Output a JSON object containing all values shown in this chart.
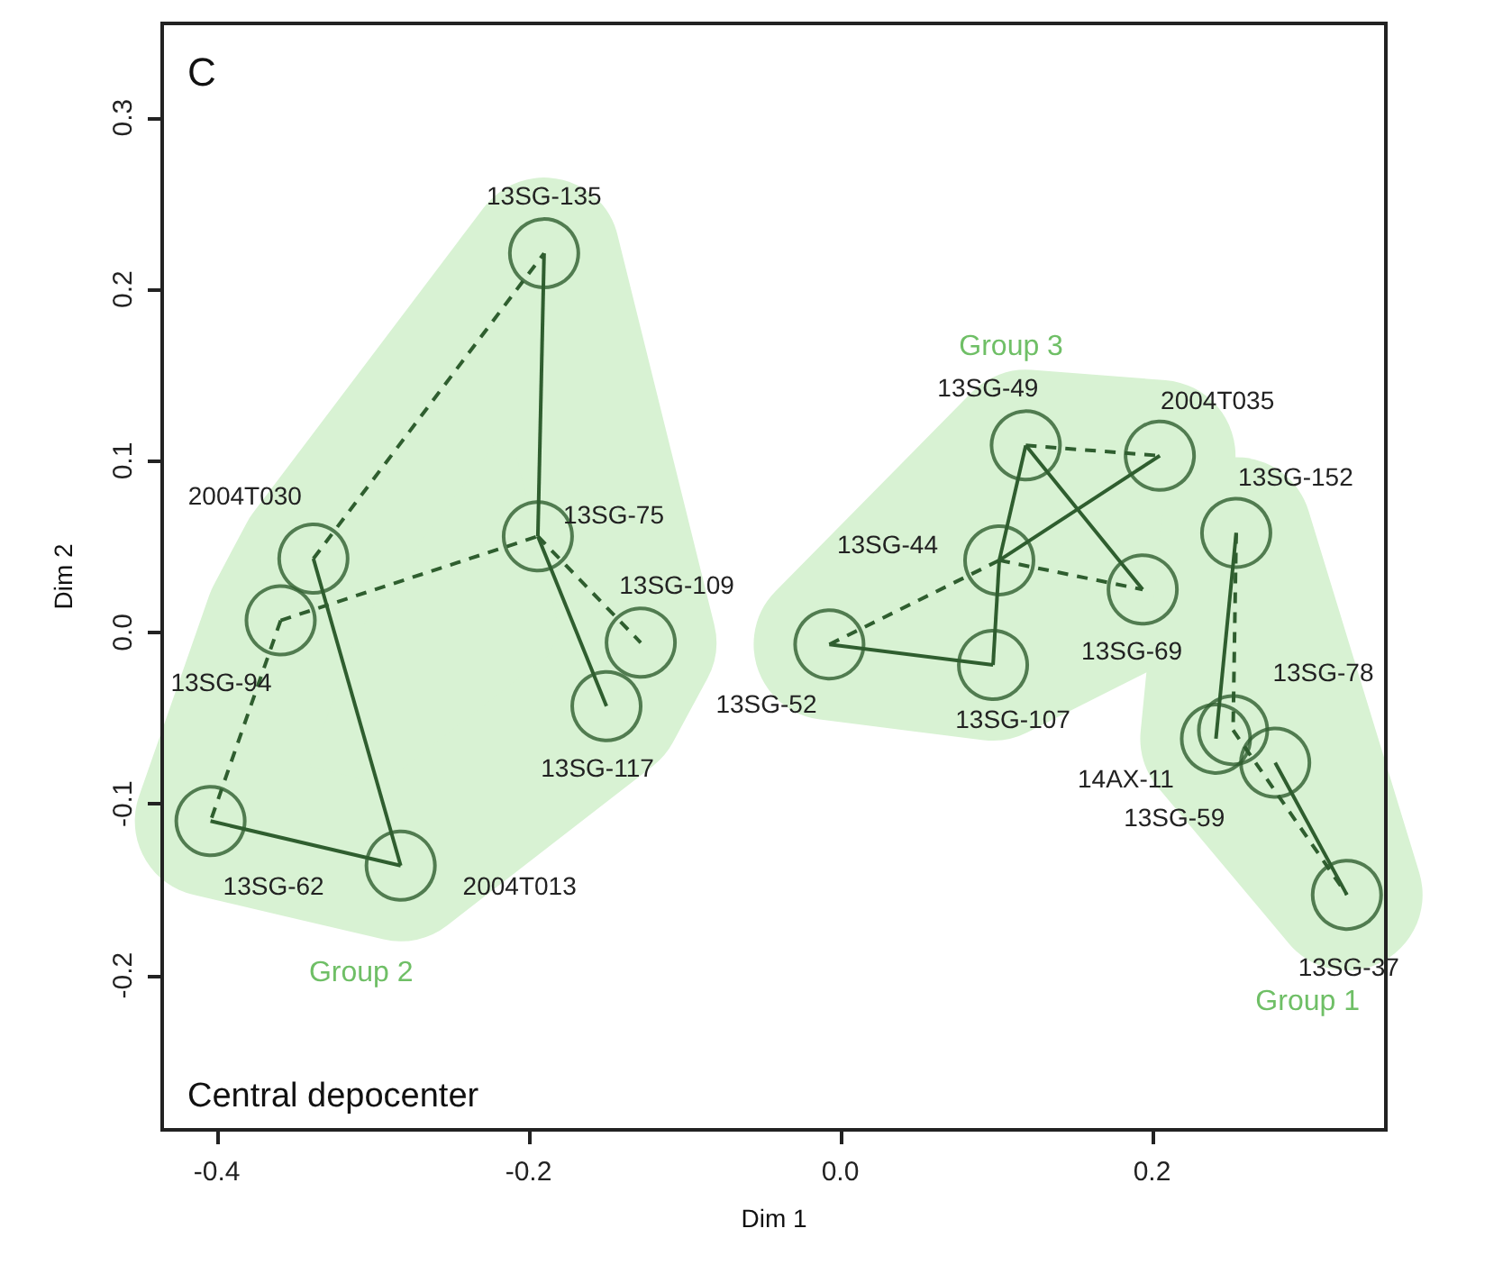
{
  "chart_data": {
    "type": "scatter",
    "xlabel": "Dim 1",
    "ylabel": "Dim 2",
    "marker": "circle",
    "xlim": [
      -0.435,
      0.35
    ],
    "ylim": [
      -0.29,
      0.355
    ],
    "xticks": [
      -0.4,
      -0.2,
      {
        "value": 0,
        "label": "0.0"
      },
      0.2
    ],
    "yticks": [
      -0.2,
      -0.1,
      {
        "value": 0,
        "label": "0.0"
      },
      0.1,
      0.2,
      0.3
    ],
    "series": [
      {
        "name": "Group 2",
        "color": "#2f5e2f",
        "x": [
          -0.19,
          -0.194,
          -0.128,
          -0.15,
          -0.338,
          -0.359,
          -0.404,
          -0.282
        ],
        "values": [
          0.221,
          0.056,
          -0.006,
          -0.043,
          0.043,
          0.007,
          -0.11,
          -0.136
        ]
      },
      {
        "name": "Group 3",
        "color": "#2f5e2f",
        "x": [
          -0.007,
          0.098,
          0.102,
          0.119,
          0.205,
          0.194
        ],
        "values": [
          -0.007,
          -0.019,
          0.042,
          0.109,
          0.103,
          0.025
        ]
      },
      {
        "name": "Group 1",
        "color": "#2f5e2f",
        "x": [
          0.254,
          0.252,
          0.241,
          0.279,
          0.325
        ],
        "values": [
          0.058,
          -0.057,
          -0.062,
          -0.076,
          -0.153
        ]
      },
      {
        "type": "line",
        "color": "#2f5e2f",
        "marker": "none",
        "line_style": "solid",
        "x": [
          -0.19,
          -0.194
        ],
        "values": [
          0.221,
          0.056
        ]
      },
      {
        "type": "line",
        "color": "#2f5e2f",
        "marker": "none",
        "line_style": "solid",
        "x": [
          -0.194,
          -0.15
        ],
        "values": [
          0.056,
          -0.043
        ]
      },
      {
        "type": "line",
        "color": "#2f5e2f",
        "marker": "none",
        "line_style": "solid",
        "x": [
          -0.338,
          -0.282
        ],
        "values": [
          0.043,
          -0.136
        ]
      },
      {
        "type": "line",
        "color": "#2f5e2f",
        "marker": "none",
        "line_style": "solid",
        "x": [
          -0.404,
          -0.282
        ],
        "values": [
          -0.11,
          -0.136
        ]
      },
      {
        "type": "line",
        "color": "#2f5e2f",
        "marker": "none",
        "line_style": "solid",
        "x": [
          -0.007,
          0.098
        ],
        "values": [
          -0.007,
          -0.019
        ]
      },
      {
        "type": "line",
        "color": "#2f5e2f",
        "marker": "none",
        "line_style": "solid",
        "x": [
          0.098,
          0.102
        ],
        "values": [
          -0.019,
          0.042
        ]
      },
      {
        "type": "line",
        "color": "#2f5e2f",
        "marker": "none",
        "line_style": "solid",
        "x": [
          0.102,
          0.119
        ],
        "values": [
          0.042,
          0.109
        ]
      },
      {
        "type": "line",
        "color": "#2f5e2f",
        "marker": "none",
        "line_style": "solid",
        "x": [
          0.102,
          0.205
        ],
        "values": [
          0.042,
          0.103
        ]
      },
      {
        "type": "line",
        "color": "#2f5e2f",
        "marker": "none",
        "line_style": "solid",
        "x": [
          0.119,
          0.194
        ],
        "values": [
          0.109,
          0.025
        ]
      },
      {
        "type": "line",
        "color": "#2f5e2f",
        "marker": "none",
        "line_style": "solid",
        "x": [
          0.254,
          0.241
        ],
        "values": [
          0.058,
          -0.062
        ]
      },
      {
        "type": "line",
        "color": "#2f5e2f",
        "marker": "none",
        "line_style": "solid",
        "x": [
          0.279,
          0.325
        ],
        "values": [
          -0.076,
          -0.153
        ]
      },
      {
        "type": "line",
        "color": "#2f5e2f",
        "marker": "none",
        "line_style": "dashed",
        "x": [
          -0.338,
          -0.19
        ],
        "values": [
          0.043,
          0.221
        ]
      },
      {
        "type": "line",
        "color": "#2f5e2f",
        "marker": "none",
        "line_style": "dashed",
        "x": [
          -0.359,
          -0.194
        ],
        "values": [
          0.007,
          0.056
        ]
      },
      {
        "type": "line",
        "color": "#2f5e2f",
        "marker": "none",
        "line_style": "dashed",
        "x": [
          -0.194,
          -0.128
        ],
        "values": [
          0.056,
          -0.006
        ]
      },
      {
        "type": "line",
        "color": "#2f5e2f",
        "marker": "none",
        "line_style": "dashed",
        "x": [
          -0.359,
          -0.404
        ],
        "values": [
          0.007,
          -0.11
        ]
      },
      {
        "type": "line",
        "color": "#2f5e2f",
        "marker": "none",
        "line_style": "dashed",
        "x": [
          -0.007,
          0.102
        ],
        "values": [
          -0.007,
          0.042
        ]
      },
      {
        "type": "line",
        "color": "#2f5e2f",
        "marker": "none",
        "line_style": "dashed",
        "x": [
          0.119,
          0.205
        ],
        "values": [
          0.109,
          0.103
        ]
      },
      {
        "type": "line",
        "color": "#2f5e2f",
        "marker": "none",
        "line_style": "dashed",
        "x": [
          0.102,
          0.194
        ],
        "values": [
          0.042,
          0.025
        ]
      },
      {
        "type": "line",
        "color": "#2f5e2f",
        "marker": "none",
        "line_style": "dashed",
        "x": [
          0.254,
          0.252
        ],
        "values": [
          0.058,
          -0.057
        ]
      },
      {
        "type": "line",
        "color": "#2f5e2f",
        "marker": "none",
        "line_style": "dashed",
        "x": [
          0.252,
          0.325
        ],
        "values": [
          -0.057,
          -0.153
        ]
      }
    ],
    "annotations": [
      "C",
      "Central depocenter",
      {
        "text": "13SG-135",
        "x": -0.19,
        "y": 0.221
      },
      {
        "text": "13SG-75",
        "x": -0.194,
        "y": 0.056
      },
      {
        "text": "13SG-109",
        "x": -0.128,
        "y": -0.006
      },
      {
        "text": "13SG-117",
        "x": -0.15,
        "y": -0.043
      },
      {
        "text": "2004T030",
        "x": -0.338,
        "y": 0.043
      },
      {
        "text": "13SG-94",
        "x": -0.359,
        "y": 0.007
      },
      {
        "text": "13SG-62",
        "x": -0.404,
        "y": -0.11
      },
      {
        "text": "2004T013",
        "x": -0.282,
        "y": -0.136
      },
      {
        "text": "13SG-52",
        "x": -0.007,
        "y": -0.007
      },
      {
        "text": "13SG-107",
        "x": 0.098,
        "y": -0.019
      },
      {
        "text": "13SG-44",
        "x": 0.102,
        "y": 0.042
      },
      {
        "text": "13SG-49",
        "x": 0.119,
        "y": 0.109
      },
      {
        "text": "2004T035",
        "x": 0.205,
        "y": 0.103
      },
      {
        "text": "13SG-69",
        "x": 0.194,
        "y": 0.025
      },
      {
        "text": "13SG-152",
        "x": 0.254,
        "y": 0.058
      },
      {
        "text": "13SG-78",
        "x": 0.252,
        "y": -0.057
      },
      {
        "text": "14AX-11",
        "x": 0.241,
        "y": -0.062
      },
      {
        "text": "13SG-59",
        "x": 0.279,
        "y": -0.076
      },
      {
        "text": "13SG-37",
        "x": 0.325,
        "y": -0.153
      }
    ]
  }
}
